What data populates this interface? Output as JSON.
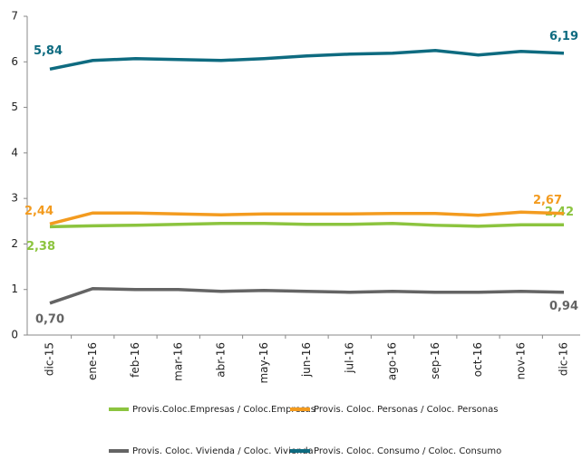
{
  "chart_data": {
    "type": "line",
    "categories": [
      "dic-15",
      "ene-16",
      "feb-16",
      "mar-16",
      "abr-16",
      "may-16",
      "jun-16",
      "jul-16",
      "ago-16",
      "sep-16",
      "oct-16",
      "nov-16",
      "dic-16"
    ],
    "ylim": [
      0,
      7
    ],
    "yticks": [
      0,
      1,
      2,
      3,
      4,
      5,
      6,
      7
    ],
    "series": [
      {
        "name": "Provis.Coloc.Empresas / Coloc.Empresas",
        "color": "#8cc43f",
        "values": [
          2.38,
          2.4,
          2.41,
          2.43,
          2.45,
          2.45,
          2.43,
          2.43,
          2.45,
          2.41,
          2.39,
          2.42,
          2.42
        ],
        "value_labels": [
          "2,38",
          null,
          null,
          null,
          null,
          null,
          null,
          null,
          null,
          null,
          null,
          null,
          "2,42"
        ]
      },
      {
        "name": "Provis. Coloc. Personas / Coloc. Personas",
        "color": "#f39b1f",
        "values": [
          2.44,
          2.68,
          2.68,
          2.66,
          2.64,
          2.66,
          2.66,
          2.66,
          2.67,
          2.67,
          2.63,
          2.7,
          2.67
        ],
        "value_labels": [
          "2,44",
          null,
          null,
          null,
          null,
          null,
          null,
          null,
          null,
          null,
          null,
          null,
          "2,67"
        ]
      },
      {
        "name": "Provis. Coloc. Vivienda / Coloc. Vivienda",
        "color": "#646464",
        "values": [
          0.7,
          1.02,
          1.0,
          1.0,
          0.96,
          0.98,
          0.96,
          0.94,
          0.96,
          0.94,
          0.94,
          0.96,
          0.94
        ],
        "value_labels": [
          "0,70",
          null,
          null,
          null,
          null,
          null,
          null,
          null,
          null,
          null,
          null,
          null,
          "0,94"
        ]
      },
      {
        "name": "Provis. Coloc. Consumo / Coloc. Consumo",
        "color": "#0e6b80",
        "values": [
          5.84,
          6.03,
          6.07,
          6.05,
          6.03,
          6.07,
          6.13,
          6.17,
          6.19,
          6.25,
          6.15,
          6.23,
          6.19
        ],
        "value_labels": [
          "5,84",
          null,
          null,
          null,
          null,
          null,
          null,
          null,
          null,
          null,
          null,
          null,
          "6,19"
        ]
      }
    ]
  }
}
